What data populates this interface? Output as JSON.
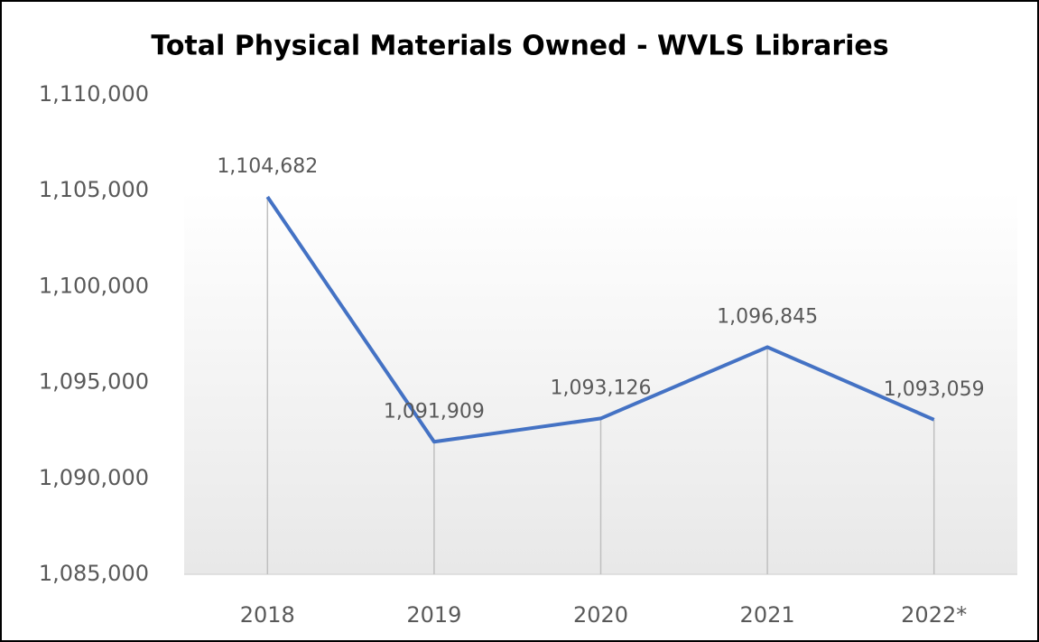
{
  "chart_data": {
    "type": "line",
    "title": "Total Physical Materials Owned - WVLS Libraries",
    "categories": [
      "2018",
      "2019",
      "2020",
      "2021",
      "2022*"
    ],
    "series": [
      {
        "name": "Total Physical Materials Owned",
        "color": "#4472c4",
        "values": [
          1104682,
          1091909,
          1093126,
          1096845,
          1093059
        ],
        "value_labels": [
          "1,104,682",
          "1,091,909",
          "1,093,126",
          "1,096,845",
          "1,093,059"
        ]
      }
    ],
    "ylim": [
      1085000,
      1110000
    ],
    "yticks": [
      {
        "value": 1085000,
        "label": "1,085,000"
      },
      {
        "value": 1090000,
        "label": "1,090,000"
      },
      {
        "value": 1095000,
        "label": "1,095,000"
      },
      {
        "value": 1100000,
        "label": "1,100,000"
      },
      {
        "value": 1105000,
        "label": "1,105,000"
      },
      {
        "value": 1110000,
        "label": "1,110,000"
      }
    ],
    "drop_lines": true
  }
}
